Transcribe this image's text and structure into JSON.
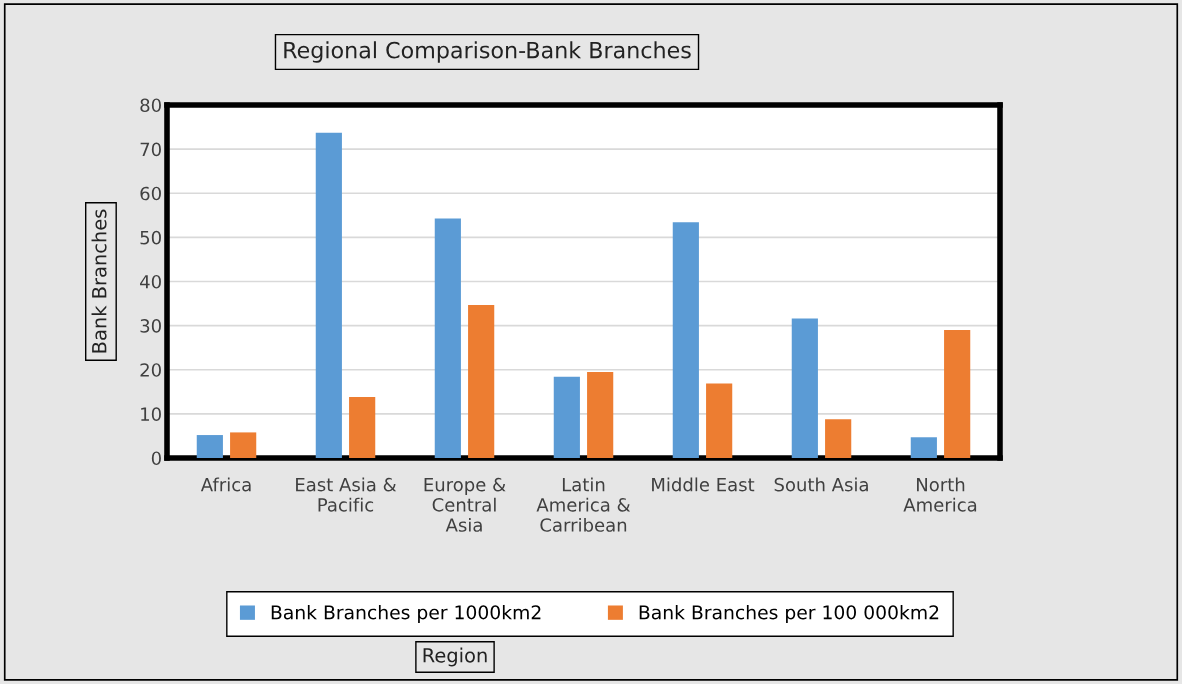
{
  "chart_data": {
    "type": "bar",
    "title": "Regional Comparison-Bank Branches",
    "annotations": [
      "Region"
    ],
    "ylabel": "Bank Branches",
    "categories": [
      "Africa",
      "East Asia &\nPacific",
      "Europe &\nCentral\nAsia",
      "Latin\nAmerica &\nCarribean",
      "Middle East",
      "South Asia",
      "North\nAmerica"
    ],
    "series": [
      {
        "name": "Bank Branches per 1000km2",
        "color": "#5b9bd5",
        "values": [
          5.2,
          73.7,
          54.3,
          18.4,
          53.4,
          31.6,
          4.7
        ]
      },
      {
        "name": "Bank Branches per 100 000km2",
        "color": "#ed7d31",
        "values": [
          5.8,
          13.8,
          34.7,
          19.5,
          16.9,
          8.8,
          29.0
        ]
      }
    ],
    "ylim": [
      0,
      80
    ],
    "yticks": [
      0,
      10,
      20,
      30,
      40,
      50,
      60,
      70,
      80
    ],
    "grid": "y",
    "legend": "bottom"
  }
}
